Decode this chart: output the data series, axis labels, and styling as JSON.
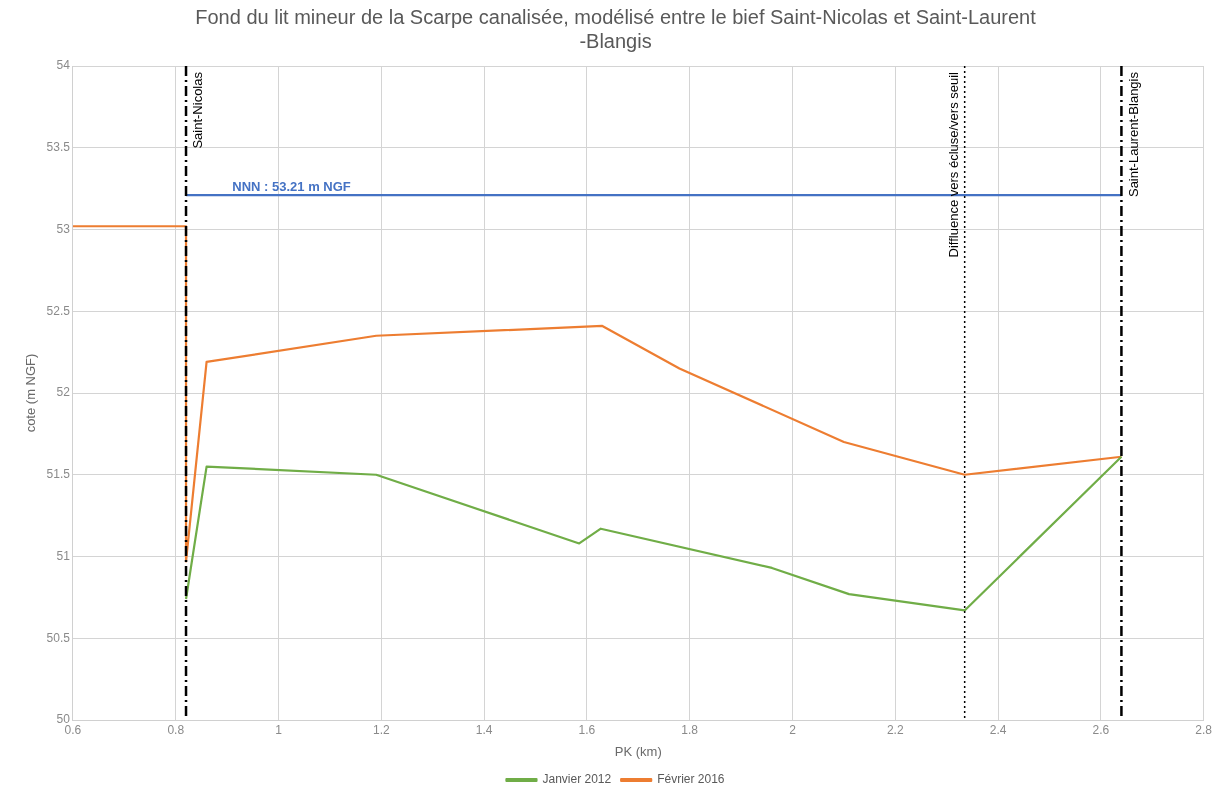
{
  "chart_data": {
    "type": "line",
    "title": "Fond du lit mineur de la Scarpe canalisée, modélisé entre le bief Saint-Nicolas et Saint-Laurent -Blangis",
    "xlabel": "PK (km)",
    "ylabel": "cote (m NGF)",
    "series": [
      {
        "name": "Janvier 2012",
        "color": "#70ad47",
        "x": [
          0.82,
          0.86,
          1.19,
          1.585,
          1.627,
          1.96,
          2.11,
          2.335,
          2.64
        ],
        "values": [
          50.74,
          51.55,
          51.5,
          51.08,
          51.17,
          50.93,
          50.77,
          50.67,
          51.61
        ]
      },
      {
        "name": "Février 2016",
        "color": "#ed7d31",
        "x": [
          0.6,
          0.82,
          0.82,
          0.86,
          1.19,
          1.63,
          1.78,
          2.1,
          2.335,
          2.64
        ],
        "values": [
          53.02,
          53.02,
          50.97,
          52.19,
          52.35,
          52.41,
          52.15,
          51.7,
          51.5,
          51.61
        ]
      },
      {
        "color": "#4472c4",
        "x": [
          0.82,
          2.64
        ],
        "values": [
          53.21,
          53.21
        ]
      }
    ],
    "annotations": [
      {
        "text": "NNN : 53.21 m NGF",
        "x": 0.91,
        "y": 53.21
      }
    ],
    "ref_lines": [
      {
        "axis": "x",
        "value": 0.82,
        "label": "Saint-Nicolas",
        "color": "#000000",
        "line_style": "dashdot"
      },
      {
        "axis": "x",
        "value": 2.335,
        "label": "Diffluence vers écluse/vers seuil",
        "color": "#000000",
        "line_style": "dotted"
      },
      {
        "axis": "x",
        "value": 2.64,
        "label": "Saint-Laurent-Blangis",
        "color": "#000000",
        "line_style": "dashdot"
      }
    ],
    "xlim": [
      0.6,
      2.8
    ],
    "xticks": [
      0.6,
      0.8,
      1,
      1.2,
      1.4,
      1.6,
      1.8,
      2,
      2.2,
      2.4,
      2.6,
      2.8
    ],
    "ylim": [
      50,
      54
    ],
    "yticks": [
      50,
      50.5,
      51,
      51.5,
      52,
      52.5,
      53,
      53.5,
      54
    ],
    "grid": true,
    "legend": "bottom",
    "marker": "none",
    "line_style": "solid"
  }
}
